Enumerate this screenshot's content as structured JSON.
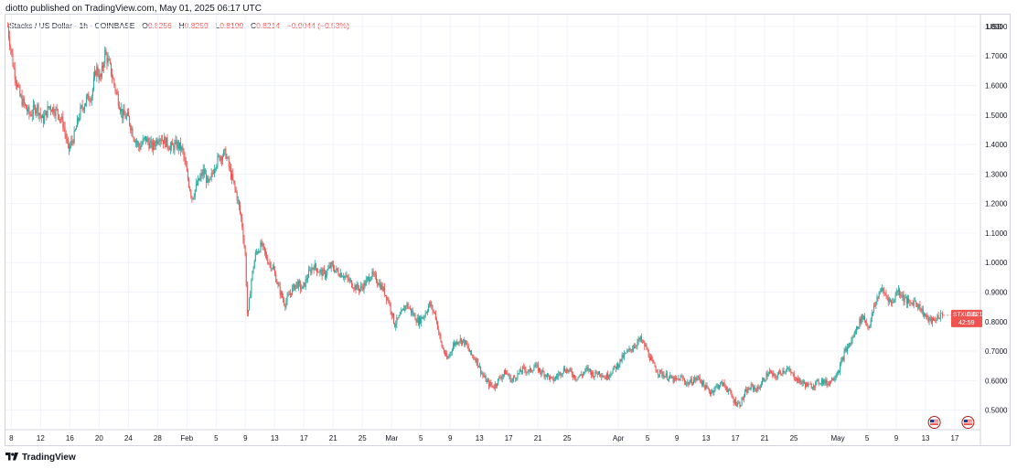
{
  "header": {
    "published": "diotto published on TradingView.com, May 01, 2025 06:17 UTC"
  },
  "symbol_line": {
    "name": "Stacks / US Dollar · 1h · COINBASE",
    "o_label": "O",
    "o_val": "0.8256",
    "h_label": "H",
    "h_val": "0.8259",
    "l_label": "L",
    "l_val": "0.8199",
    "c_label": "C",
    "c_val": "0.8214",
    "change": "−0.0044 (−0.53%)"
  },
  "price_tag": {
    "symbol": "STXUSD",
    "price": "0.8214",
    "countdown": "42:59"
  },
  "footer": {
    "brand": "TradingView"
  },
  "colors": {
    "up": "#26a69a",
    "down": "#ef5350",
    "grid": "#f0f3fa",
    "price_tag_bg": "#ef5350",
    "text": "#131722"
  },
  "chart_data": {
    "type": "candlestick",
    "currency": "USD",
    "ylim": [
      0.44,
      1.84
    ],
    "y_ticks": [
      0.5,
      0.6,
      0.7,
      0.8,
      0.9,
      1.0,
      1.1,
      1.2,
      1.3,
      1.4,
      1.5,
      1.6,
      1.7,
      1.8
    ],
    "y_tick_labels": [
      "0.5000",
      "0.6000",
      "0.7000",
      "0.8000",
      "0.9000",
      "1.0000",
      "1.1000",
      "1.2000",
      "1.3000",
      "1.4000",
      "1.5000",
      "1.6000",
      "1.7000",
      "1.8000"
    ],
    "x_tick_labels": [
      "8",
      "12",
      "16",
      "20",
      "24",
      "28",
      "Feb",
      "5",
      "9",
      "13",
      "17",
      "21",
      "25",
      "Mar",
      "5",
      "9",
      "13",
      "17",
      "21",
      "25",
      "Apr",
      "5",
      "9",
      "13",
      "17",
      "21",
      "25",
      "May",
      "5",
      "9",
      "13",
      "17"
    ],
    "x_tick_days": [
      8,
      12,
      16,
      20,
      24,
      28,
      32,
      36,
      40,
      44,
      48,
      52,
      56,
      60,
      64,
      68,
      72,
      76,
      80,
      84,
      91,
      95,
      99,
      103,
      107,
      111,
      115,
      121,
      125,
      129,
      133,
      137
    ],
    "day_axis_note": "days counted from Jan 0, 2025 (Jan 8 = 8, Feb 1 = 32, Mar 1 = 60, Apr 1 = 91, May 1 = 121)",
    "series": [
      {
        "name": "STXUSD",
        "points": [
          [
            7.5,
            1.8
          ],
          [
            8.3,
            1.66
          ],
          [
            9.2,
            1.56
          ],
          [
            10.5,
            1.5
          ],
          [
            11.5,
            1.53
          ],
          [
            12.3,
            1.48
          ],
          [
            13.2,
            1.53
          ],
          [
            14.3,
            1.51
          ],
          [
            15.1,
            1.47
          ],
          [
            15.8,
            1.38
          ],
          [
            16.6,
            1.43
          ],
          [
            17.4,
            1.51
          ],
          [
            18.2,
            1.55
          ],
          [
            19.0,
            1.57
          ],
          [
            19.6,
            1.66
          ],
          [
            20.2,
            1.62
          ],
          [
            20.8,
            1.71
          ],
          [
            21.5,
            1.66
          ],
          [
            22.3,
            1.58
          ],
          [
            23.2,
            1.5
          ],
          [
            24.0,
            1.49
          ],
          [
            24.7,
            1.43
          ],
          [
            25.5,
            1.39
          ],
          [
            26.3,
            1.42
          ],
          [
            27.3,
            1.39
          ],
          [
            28.2,
            1.43
          ],
          [
            29.0,
            1.41
          ],
          [
            29.9,
            1.39
          ],
          [
            30.7,
            1.4
          ],
          [
            31.4,
            1.38
          ],
          [
            32.0,
            1.3
          ],
          [
            32.7,
            1.22
          ],
          [
            33.5,
            1.27
          ],
          [
            34.3,
            1.31
          ],
          [
            35.0,
            1.26
          ],
          [
            35.8,
            1.33
          ],
          [
            36.5,
            1.36
          ],
          [
            37.3,
            1.37
          ],
          [
            38.0,
            1.3
          ],
          [
            38.8,
            1.23
          ],
          [
            39.5,
            1.14
          ],
          [
            40.0,
            1.02
          ],
          [
            40.3,
            0.8
          ],
          [
            40.8,
            0.94
          ],
          [
            41.4,
            1.03
          ],
          [
            42.2,
            1.06
          ],
          [
            43.0,
            1.01
          ],
          [
            43.8,
            0.98
          ],
          [
            44.6,
            0.91
          ],
          [
            45.4,
            0.86
          ],
          [
            46.2,
            0.9
          ],
          [
            47.0,
            0.93
          ],
          [
            47.8,
            0.91
          ],
          [
            48.6,
            0.96
          ],
          [
            49.3,
            0.99
          ],
          [
            50.1,
            0.97
          ],
          [
            50.9,
            0.96
          ],
          [
            51.7,
            0.99
          ],
          [
            52.5,
            0.97
          ],
          [
            53.3,
            0.96
          ],
          [
            54.1,
            0.94
          ],
          [
            54.9,
            0.92
          ],
          [
            55.7,
            0.91
          ],
          [
            56.4,
            0.93
          ],
          [
            57.2,
            0.96
          ],
          [
            58.0,
            0.94
          ],
          [
            58.8,
            0.91
          ],
          [
            59.6,
            0.87
          ],
          [
            60.4,
            0.79
          ],
          [
            61.2,
            0.82
          ],
          [
            62.0,
            0.86
          ],
          [
            62.8,
            0.83
          ],
          [
            63.6,
            0.8
          ],
          [
            64.4,
            0.82
          ],
          [
            65.2,
            0.86
          ],
          [
            66.0,
            0.82
          ],
          [
            66.8,
            0.72
          ],
          [
            67.6,
            0.67
          ],
          [
            68.4,
            0.72
          ],
          [
            69.2,
            0.74
          ],
          [
            70.0,
            0.73
          ],
          [
            70.8,
            0.69
          ],
          [
            71.6,
            0.67
          ],
          [
            72.4,
            0.62
          ],
          [
            73.2,
            0.59
          ],
          [
            74.0,
            0.58
          ],
          [
            74.8,
            0.61
          ],
          [
            75.6,
            0.63
          ],
          [
            76.4,
            0.6
          ],
          [
            77.2,
            0.62
          ],
          [
            78.0,
            0.64
          ],
          [
            78.8,
            0.63
          ],
          [
            79.6,
            0.65
          ],
          [
            80.4,
            0.63
          ],
          [
            81.2,
            0.62
          ],
          [
            82.0,
            0.6
          ],
          [
            82.8,
            0.62
          ],
          [
            83.6,
            0.64
          ],
          [
            84.4,
            0.63
          ],
          [
            85.2,
            0.61
          ],
          [
            86.0,
            0.62
          ],
          [
            86.8,
            0.64
          ],
          [
            87.6,
            0.62
          ],
          [
            88.4,
            0.63
          ],
          [
            89.2,
            0.61
          ],
          [
            90.0,
            0.63
          ],
          [
            90.8,
            0.65
          ],
          [
            91.6,
            0.68
          ],
          [
            92.4,
            0.7
          ],
          [
            93.2,
            0.72
          ],
          [
            94.0,
            0.74
          ],
          [
            94.8,
            0.71
          ],
          [
            95.6,
            0.66
          ],
          [
            96.4,
            0.63
          ],
          [
            97.2,
            0.62
          ],
          [
            98.0,
            0.61
          ],
          [
            98.8,
            0.6
          ],
          [
            99.6,
            0.61
          ],
          [
            100.4,
            0.59
          ],
          [
            101.2,
            0.6
          ],
          [
            102.0,
            0.61
          ],
          [
            102.8,
            0.58
          ],
          [
            103.6,
            0.56
          ],
          [
            104.4,
            0.58
          ],
          [
            105.2,
            0.59
          ],
          [
            106.0,
            0.57
          ],
          [
            106.8,
            0.53
          ],
          [
            107.6,
            0.52
          ],
          [
            108.4,
            0.56
          ],
          [
            109.2,
            0.58
          ],
          [
            110.0,
            0.57
          ],
          [
            110.8,
            0.6
          ],
          [
            111.6,
            0.63
          ],
          [
            112.4,
            0.61
          ],
          [
            113.2,
            0.63
          ],
          [
            114.0,
            0.64
          ],
          [
            114.8,
            0.62
          ],
          [
            115.6,
            0.6
          ],
          [
            116.4,
            0.59
          ],
          [
            117.2,
            0.58
          ],
          [
            118.0,
            0.59
          ],
          [
            118.8,
            0.6
          ],
          [
            119.6,
            0.59
          ],
          [
            120.4,
            0.61
          ],
          [
            121.2,
            0.64
          ],
          [
            122.0,
            0.7
          ],
          [
            122.8,
            0.73
          ],
          [
            123.6,
            0.78
          ],
          [
            124.4,
            0.82
          ],
          [
            125.2,
            0.78
          ],
          [
            126.0,
            0.85
          ],
          [
            126.8,
            0.91
          ],
          [
            127.6,
            0.89
          ],
          [
            128.4,
            0.86
          ],
          [
            129.2,
            0.91
          ],
          [
            130.0,
            0.88
          ],
          [
            130.8,
            0.86
          ],
          [
            131.6,
            0.87
          ],
          [
            132.4,
            0.84
          ],
          [
            133.2,
            0.81
          ],
          [
            134.0,
            0.8
          ],
          [
            134.8,
            0.82
          ],
          [
            135.4,
            0.8214
          ]
        ]
      }
    ],
    "events": [
      {
        "icon": "us-flag-icon",
        "label": "",
        "day": 134.2
      },
      {
        "icon": "us-flag-icon",
        "label": "",
        "day": 138.8
      }
    ]
  }
}
